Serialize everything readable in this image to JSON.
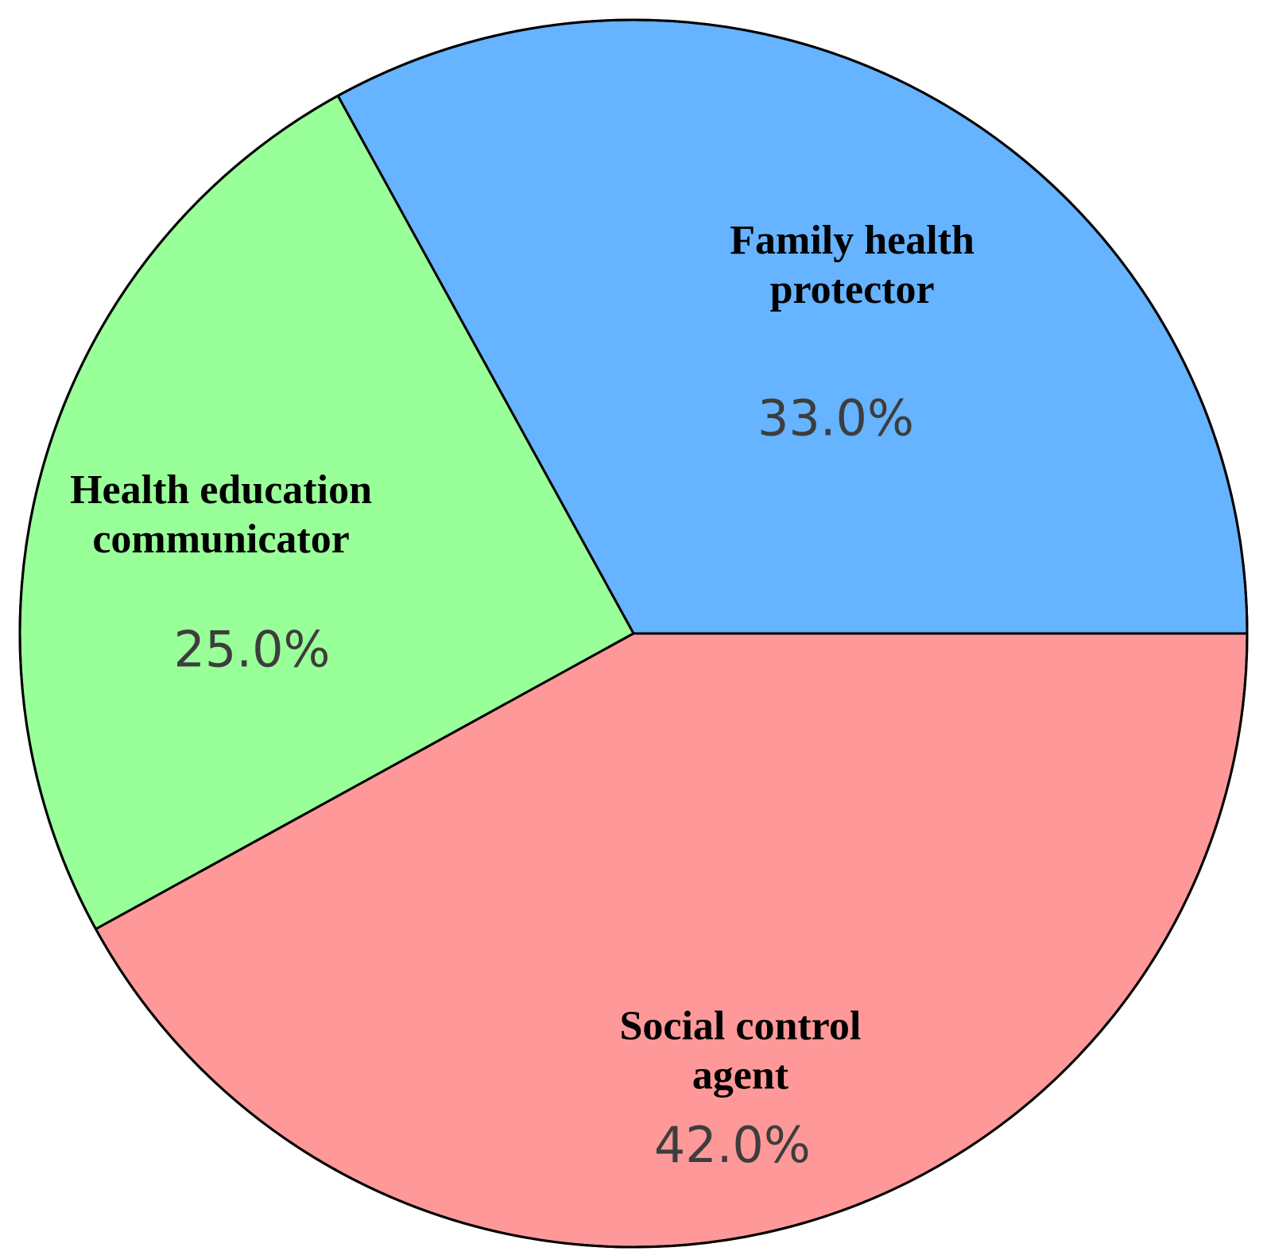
{
  "chart_data": {
    "type": "pie",
    "start_angle_deg": 0,
    "direction": "counterclockwise",
    "slices": [
      {
        "label_lines": [
          "Family health",
          "protector"
        ],
        "value": 33.0,
        "pct_label": "33.0%",
        "color": "#66b3ff"
      },
      {
        "label_lines": [
          "Health education",
          "communicator"
        ],
        "value": 25.0,
        "pct_label": "25.0%",
        "color": "#99ff99"
      },
      {
        "label_lines": [
          "Social control",
          "agent"
        ],
        "value": 42.0,
        "pct_label": "42.0%",
        "color": "#ff9999"
      }
    ],
    "edge_color": "#000000"
  }
}
